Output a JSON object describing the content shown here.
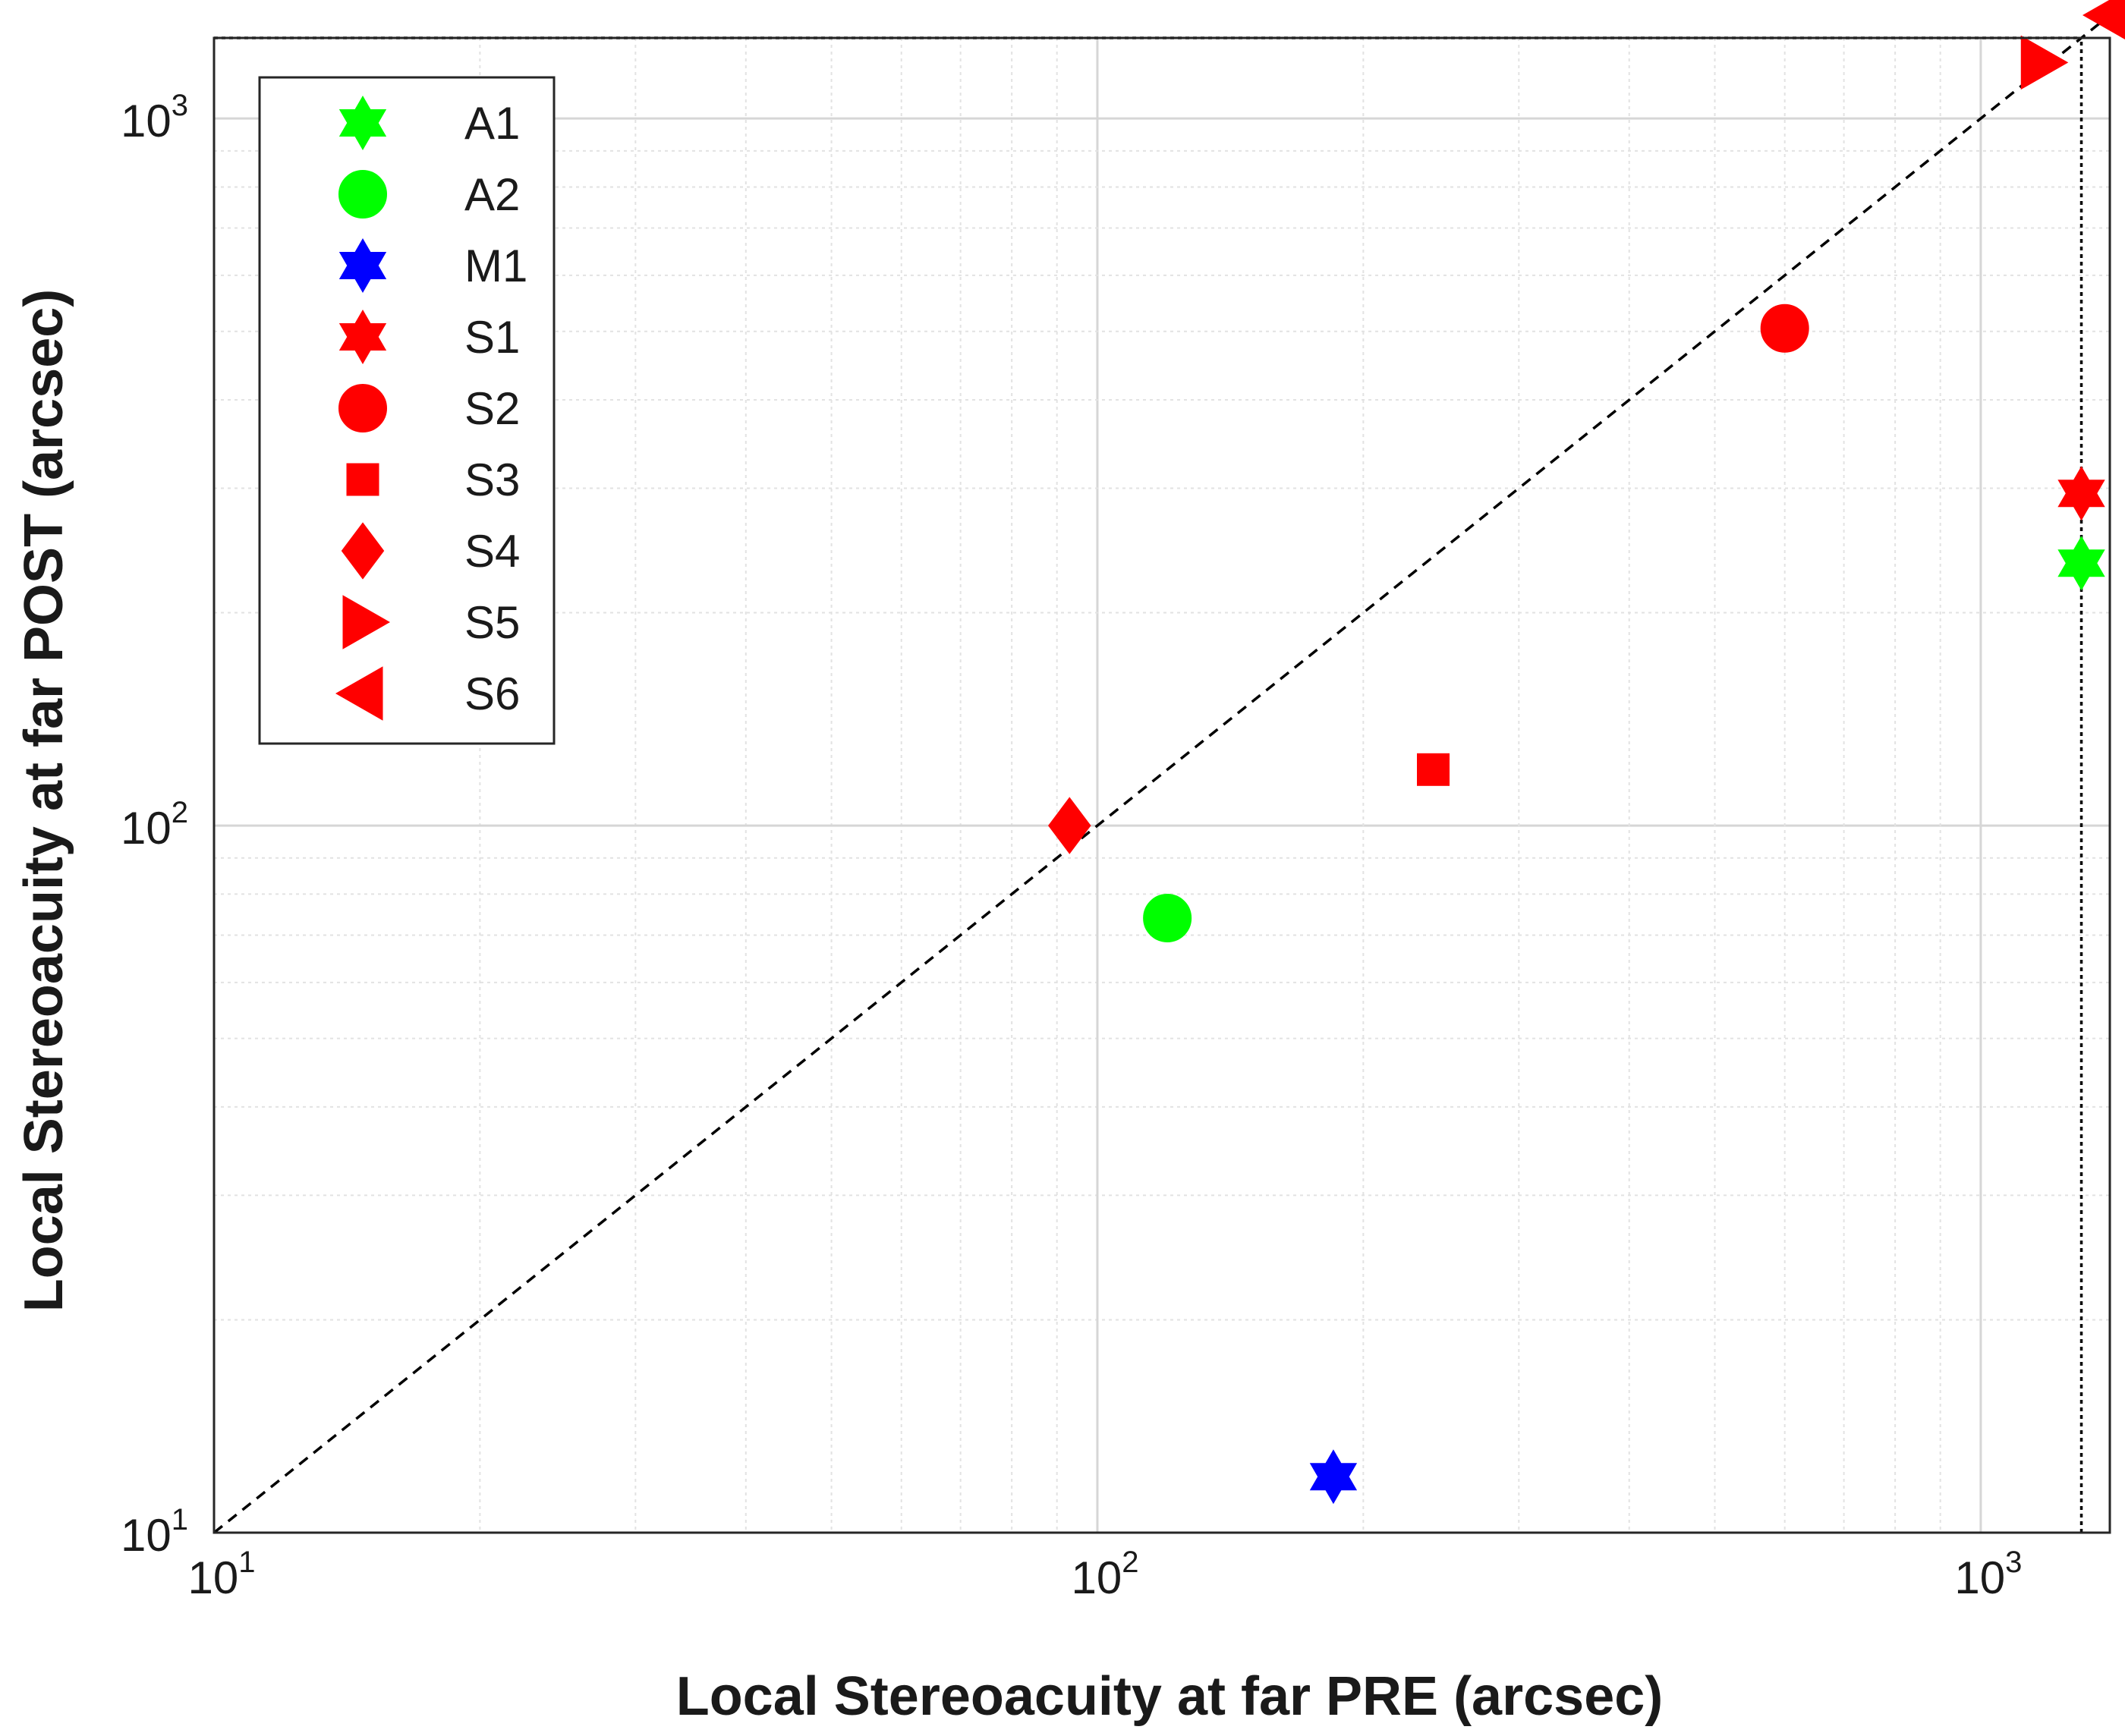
{
  "chart_data": {
    "type": "scatter",
    "x_scale": "log",
    "y_scale": "log",
    "xlabel": "Local Stereoacuity at far PRE (arcsec)",
    "ylabel": "Local Stereoacuity at far  POST (arcsec)",
    "xlim": [
      10,
      1400
    ],
    "ylim": [
      10,
      1300
    ],
    "grid": true,
    "legend_position": "top-left",
    "x_ticks": [
      {
        "value": 10,
        "base": "10",
        "exp": "1"
      },
      {
        "value": 100,
        "base": "10",
        "exp": "2"
      },
      {
        "value": 1000,
        "base": "10",
        "exp": "3"
      }
    ],
    "y_ticks": [
      {
        "value": 10,
        "base": "10",
        "exp": "1"
      },
      {
        "value": 100,
        "base": "10",
        "exp": "2"
      },
      {
        "value": 1000,
        "base": "10",
        "exp": "3"
      }
    ],
    "reference_lines": [
      {
        "name": "identity",
        "style": "dashed",
        "from": [
          10,
          10
        ],
        "to": [
          1400,
          1400
        ]
      },
      {
        "name": "ceiling-horizontal",
        "style": "dotted",
        "y": 1300,
        "x_range": [
          10,
          1300
        ]
      },
      {
        "name": "ceiling-vertical",
        "style": "dotted",
        "x": 1300,
        "y_range": [
          10,
          1300
        ]
      }
    ],
    "series": [
      {
        "name": "A1",
        "marker": "hexagram",
        "color": "#00ff00",
        "x": 1300,
        "y": 235
      },
      {
        "name": "A2",
        "marker": "circle",
        "color": "#00ff00",
        "x": 120,
        "y": 74
      },
      {
        "name": "M1",
        "marker": "hexagram",
        "color": "#0000ff",
        "x": 185,
        "y": 12
      },
      {
        "name": "S1",
        "marker": "hexagram",
        "color": "#ff0000",
        "x": 1300,
        "y": 295
      },
      {
        "name": "S2",
        "marker": "circle",
        "color": "#ff0000",
        "x": 600,
        "y": 505
      },
      {
        "name": "S3",
        "marker": "square",
        "color": "#ff0000",
        "x": 240,
        "y": 120
      },
      {
        "name": "S4",
        "marker": "diamond",
        "color": "#ff0000",
        "x": 93,
        "y": 100
      },
      {
        "name": "S5",
        "marker": "triangle-right",
        "color": "#ff0000",
        "x": 1170,
        "y": 1200
      },
      {
        "name": "S6",
        "marker": "triangle-left",
        "color": "#ff0000",
        "x": 1400,
        "y": 1400
      }
    ]
  }
}
